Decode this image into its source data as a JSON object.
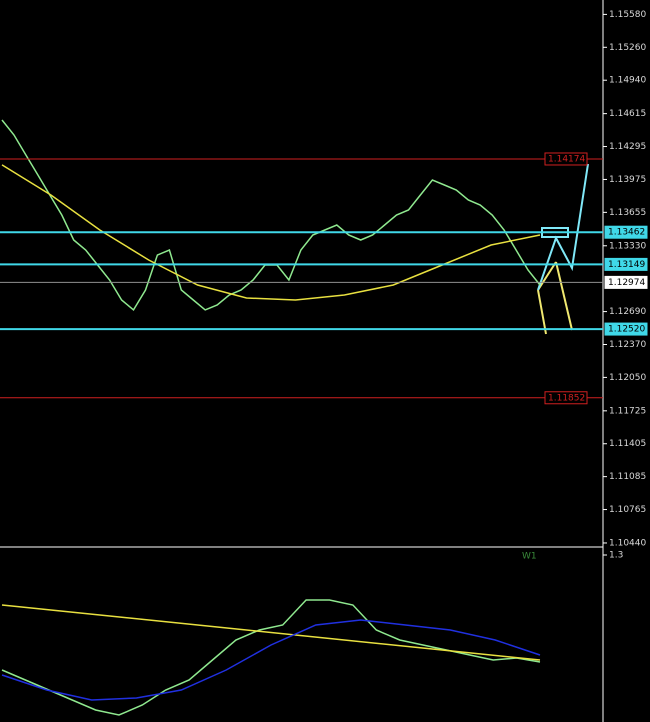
{
  "chart_data": [
    {
      "type": "line",
      "ylim": [
        1.1043,
        1.1572
      ],
      "yticks": [
        {
          "value": 1.1558,
          "label": "1.15580"
        },
        {
          "value": 1.1526,
          "label": "1.15260"
        },
        {
          "value": 1.1494,
          "label": "1.14940"
        },
        1.14615,
        1.14295,
        1.13975,
        1.13655,
        {
          "value": 1.1333,
          "label": "1.13330"
        },
        {
          "value": 1.1269,
          "label": "1.12690"
        },
        {
          "value": 1.1237,
          "label": "1.12370"
        },
        {
          "value": 1.1205,
          "label": "1.12050"
        },
        1.11725,
        1.11405,
        1.11085,
        1.10765,
        {
          "value": 1.1044,
          "label": "1.10440"
        }
      ],
      "levels": [
        {
          "value": 1.14174,
          "color": "#d02020",
          "style": "outline"
        },
        {
          "value": 1.13462,
          "color": "#40d8e8",
          "style": "filled"
        },
        {
          "value": 1.13149,
          "color": "#40d8e8",
          "style": "filled"
        },
        {
          "value": 1.12974,
          "color": "#ffffff",
          "style": "current"
        },
        {
          "value": 1.1252,
          "label": "1.12520",
          "color": "#40d8e8",
          "style": "filled"
        },
        {
          "value": 1.11852,
          "color": "#d02020",
          "style": "outline"
        }
      ],
      "series": [
        {
          "color": "#8fe88f",
          "values": [
            1.14553,
            1.14407,
            1.14213,
            1.14018,
            1.13824,
            1.13629,
            1.13386,
            1.13289,
            1.13143,
            1.12997,
            1.12803,
            1.12706,
            1.129,
            1.1324,
            1.13289,
            1.129,
            1.12803,
            1.12706,
            1.12754,
            1.12851,
            1.129,
            1.12997,
            1.13143,
            1.13143,
            1.12997,
            1.13289,
            1.13435,
            1.13483,
            1.13532,
            1.13435,
            1.13386,
            1.13435,
            1.13532,
            1.13629,
            1.13678,
            1.13824,
            1.1397,
            1.13921,
            1.13872,
            1.13775,
            1.13727,
            1.13629,
            1.13483,
            1.13289,
            1.13094,
            1.12949
          ]
        },
        {
          "color": "#e8e040",
          "values": [
            1.14116,
            1.13824,
            1.13483,
            1.13192,
            1.12949,
            1.12822,
            1.12803,
            1.12851,
            1.12949,
            1.13143,
            1.13338,
            1.13435
          ]
        }
      ]
    },
    {
      "type": "line",
      "label": "W1",
      "ylim": [
        1.04,
        1.3
      ],
      "yticks": [
        1.3
      ],
      "series": [
        {
          "color": "#8fe88f",
          "values": [
            1.1188,
            1.103,
            1.0873,
            1.0715,
            1.0558,
            1.0479,
            1.0636,
            1.0873,
            1.103,
            1.1345,
            1.1661,
            1.1818,
            1.1897,
            1.2291,
            1.2291,
            1.2212,
            1.1818,
            1.1661,
            1.1582,
            1.1503,
            1.1424,
            1.1345,
            1.1377,
            1.1314
          ]
        },
        {
          "color": "#e8e040",
          "values": [
            1.2212,
            1.2039,
            1.1866,
            1.1692,
            1.1519,
            1.1345
          ]
        },
        {
          "color": "#2030e0",
          "values": [
            1.1109,
            1.0873,
            1.0715,
            1.0747,
            1.0873,
            1.1188,
            1.1582,
            1.1897,
            1.1976,
            1.1897,
            1.1818,
            1.1661,
            1.1424
          ]
        }
      ]
    }
  ]
}
